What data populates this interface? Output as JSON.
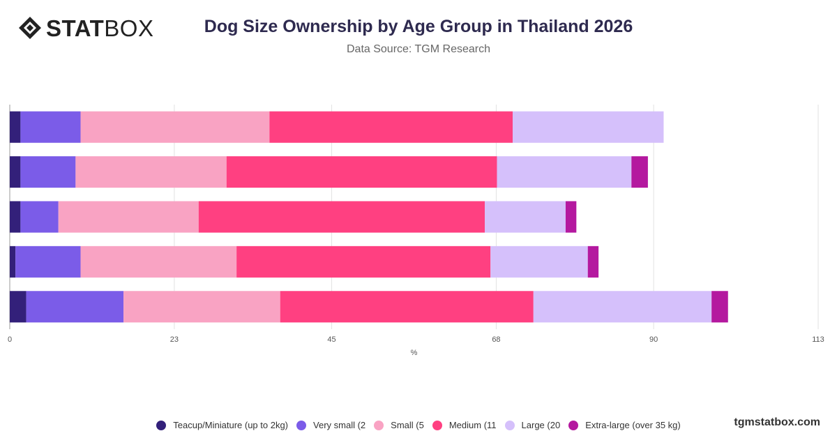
{
  "logo": {
    "strong": "STAT",
    "light": "BOX"
  },
  "title": "Dog Size Ownership by Age Group in Thailand 2026",
  "subtitle": "Data Source: TGM Research",
  "watermark": "tgmstatbox.com",
  "chart_data": {
    "type": "bar",
    "orientation": "horizontal",
    "stacked": true,
    "categories": [
      "",
      "",
      "",
      "",
      ""
    ],
    "xlabel": "%",
    "ylabel": "",
    "xlim": [
      0,
      113
    ],
    "xticks": [
      0,
      23,
      45,
      68,
      90,
      113
    ],
    "grid": true,
    "legend_position": "bottom",
    "series": [
      {
        "name": "Teacup/Miniature (up to 2kg)",
        "color": "#33207a",
        "values": [
          1.5,
          1.5,
          1.5,
          0.8,
          2.3
        ]
      },
      {
        "name": "Very small (2",
        "color": "#7b5ce8",
        "values": [
          8.4,
          7.7,
          5.3,
          9.1,
          13.6
        ]
      },
      {
        "name": "Small (5",
        "color": "#f9a3c3",
        "values": [
          26.4,
          21.1,
          19.6,
          21.8,
          21.9
        ]
      },
      {
        "name": "Medium (11",
        "color": "#ff4081",
        "values": [
          34.0,
          37.8,
          40.0,
          35.5,
          35.4
        ]
      },
      {
        "name": "Large (20",
        "color": "#d5c0fb",
        "values": [
          21.1,
          18.8,
          11.3,
          13.6,
          24.9
        ]
      },
      {
        "name": "Extra-large (over 35 kg)",
        "color": "#b4199f",
        "values": [
          0,
          2.3,
          1.5,
          1.5,
          2.3
        ]
      }
    ]
  }
}
